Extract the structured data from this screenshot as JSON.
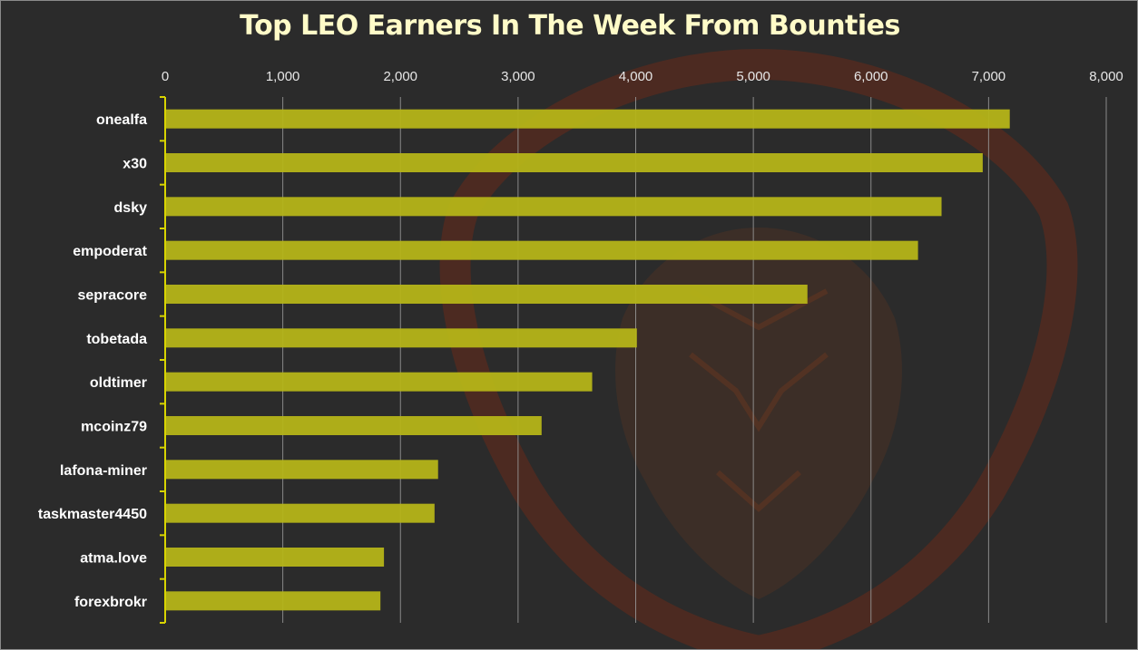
{
  "colors": {
    "background": "#2b2b2b",
    "title": "#fffbc8",
    "bar": "#b5b418",
    "gridline": "#9a9a9a",
    "axis": "#d8d400",
    "watermark": "#7a2c18"
  },
  "watermark_icon": "lion-shield-logo-icon",
  "chart_data": {
    "type": "bar",
    "orientation": "horizontal",
    "title": "Top LEO Earners In The Week From Bounties",
    "xlabel": "",
    "ylabel": "",
    "xlim": [
      0,
      8000
    ],
    "x_ticks": [
      "0",
      "1,000",
      "2,000",
      "3,000",
      "4,000",
      "5,000",
      "6,000",
      "7,000",
      "8,000"
    ],
    "x_tick_values": [
      0,
      1000,
      2000,
      3000,
      4000,
      5000,
      6000,
      7000,
      8000
    ],
    "x_axis_position": "top",
    "grid": true,
    "legend": "none",
    "categories": [
      "onealfa",
      "x30",
      "dsky",
      "empoderat",
      "sepracore",
      "tobetada",
      "oldtimer",
      "mcoinz79",
      "lafona-miner",
      "taskmaster4450",
      "atma.love",
      "forexbrokr"
    ],
    "values": [
      7180,
      6950,
      6600,
      6400,
      5460,
      4010,
      3630,
      3200,
      2320,
      2290,
      1860,
      1830
    ]
  }
}
